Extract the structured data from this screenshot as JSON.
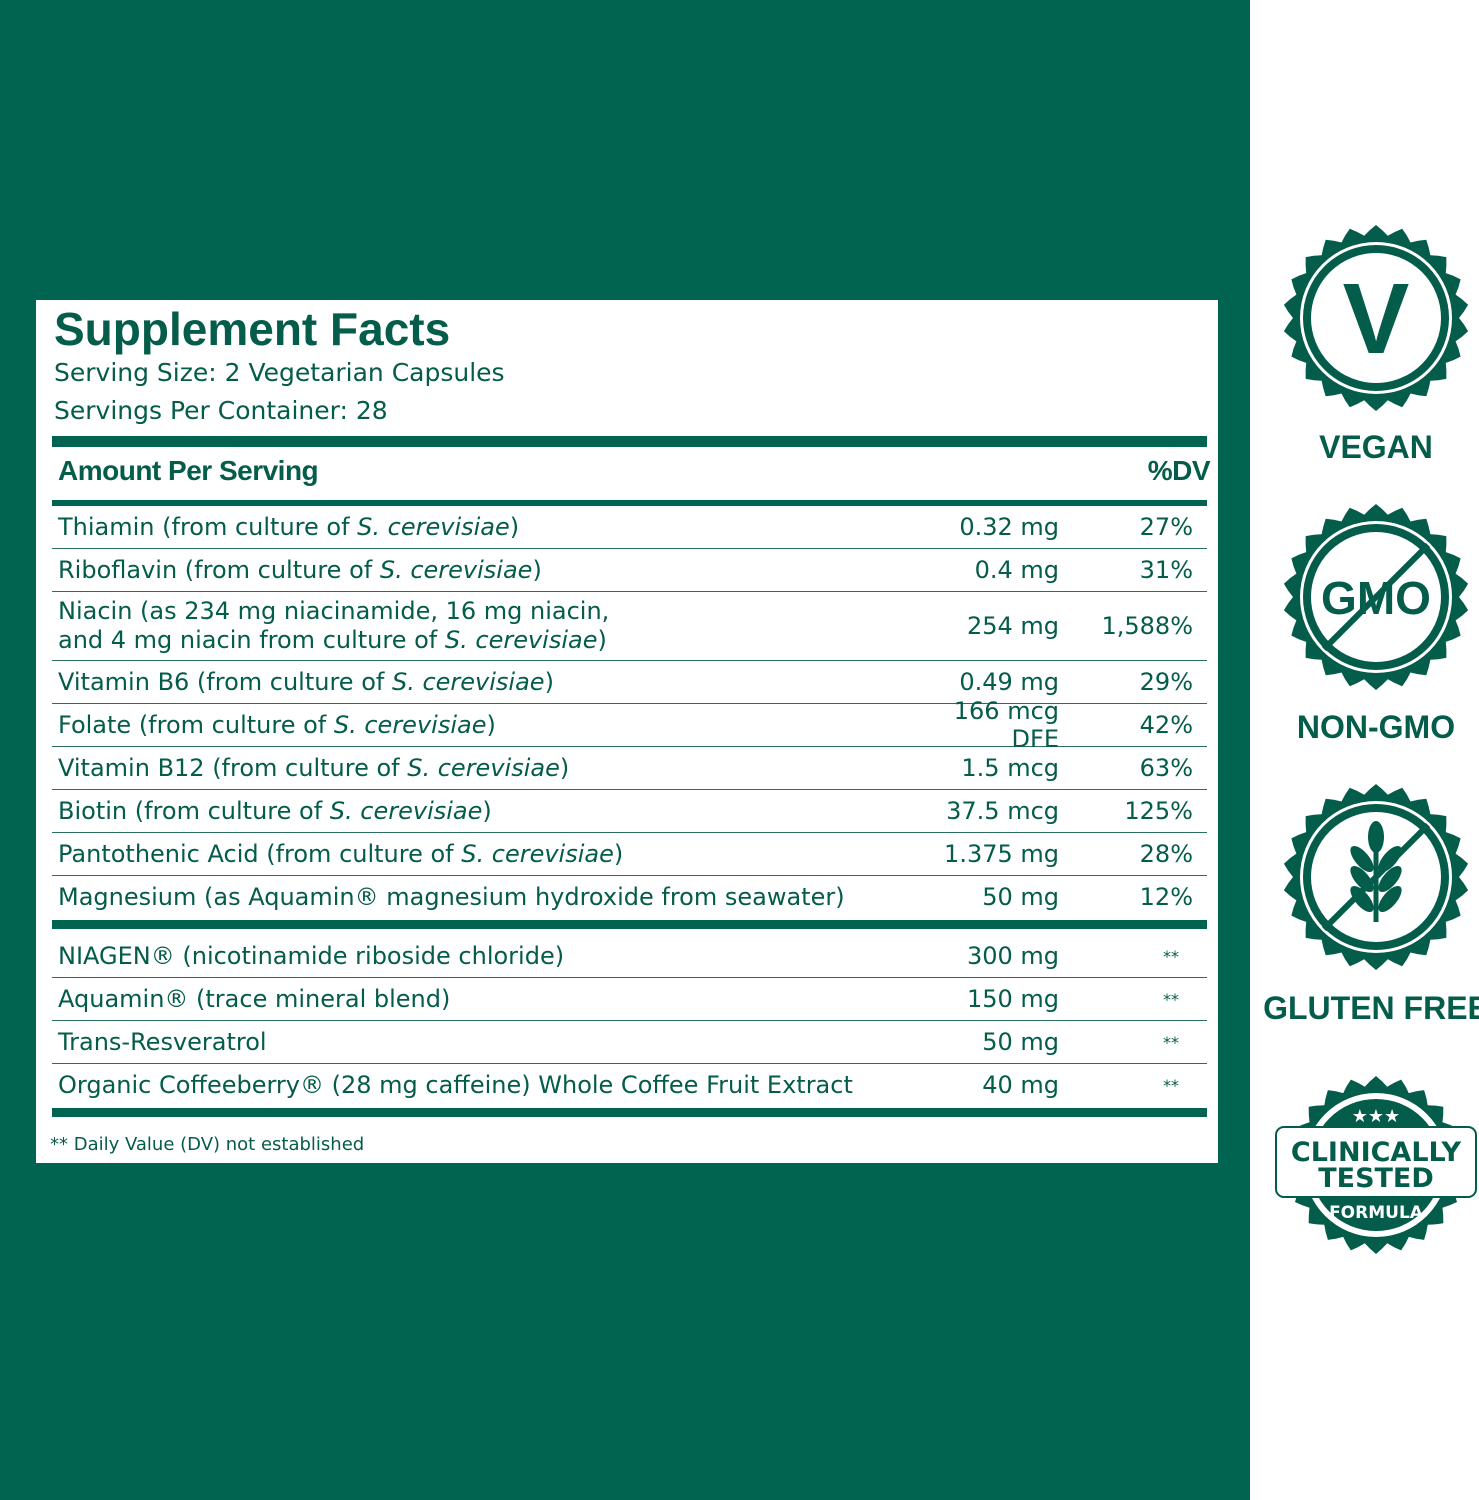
{
  "panel": {
    "title": "Supplement Facts",
    "serving_size": "Serving Size: 2 Vegetarian Capsules",
    "servings_per_container": "Servings Per Container: 28",
    "header": {
      "amount": "Amount Per Serving",
      "dv": "%DV"
    },
    "groups": [
      {
        "rows": [
          {
            "name": [
              [
                "Thiamin (from culture of ",
                "S. cerevisiae",
                ")"
              ]
            ],
            "amount": "0.32 mg",
            "dv": "27%"
          },
          {
            "name": [
              [
                "Riboflavin (from culture of ",
                "S. cerevisiae",
                ")"
              ]
            ],
            "amount": "0.4 mg",
            "dv": "31%"
          },
          {
            "name": [
              [
                "Niacin (as 234 mg niacinamide, 16 mg niacin,"
              ],
              [
                "and 4 mg niacin from culture of ",
                "S. cerevisiae",
                ")"
              ]
            ],
            "amount": "254 mg",
            "dv": "1,588%"
          },
          {
            "name": [
              [
                "Vitamin B6 (from culture of ",
                "S. cerevisiae",
                ")"
              ]
            ],
            "amount": "0.49 mg",
            "dv": "29%"
          },
          {
            "name": [
              [
                "Folate (from culture of ",
                "S. cerevisiae",
                ")"
              ]
            ],
            "amount": "166 mcg DFE",
            "dv": "42%"
          },
          {
            "name": [
              [
                "Vitamin B12 (from culture of ",
                "S. cerevisiae",
                ")"
              ]
            ],
            "amount": "1.5 mcg",
            "dv": "63%"
          },
          {
            "name": [
              [
                "Biotin (from culture of ",
                "S. cerevisiae",
                ")"
              ]
            ],
            "amount": "37.5 mcg",
            "dv": "125%"
          },
          {
            "name": [
              [
                "Pantothenic Acid (from culture of ",
                "S. cerevisiae",
                ")"
              ]
            ],
            "amount": "1.375 mg",
            "dv": "28%"
          },
          {
            "name": [
              [
                "Magnesium (as Aquamin® magnesium hydroxide from seawater)"
              ]
            ],
            "amount": "50 mg",
            "dv": "12%"
          }
        ]
      },
      {
        "rows": [
          {
            "name": [
              [
                "NIAGEN® (nicotinamide riboside chloride)"
              ]
            ],
            "amount": "300 mg",
            "dv": "**"
          },
          {
            "name": [
              [
                "Aquamin® (trace mineral blend)"
              ]
            ],
            "amount": "150 mg",
            "dv": "**"
          },
          {
            "name": [
              [
                "Trans-Resveratrol"
              ]
            ],
            "amount": "50 mg",
            "dv": "**"
          },
          {
            "name": [
              [
                "Organic Coffeeberry® (28 mg caffeine) Whole Coffee Fruit Extract"
              ]
            ],
            "amount": "40 mg",
            "dv": "**"
          }
        ]
      }
    ],
    "footnote": "** Daily Value (DV) not established"
  },
  "badges": [
    {
      "icon": "V",
      "label": "VEGAN"
    },
    {
      "icon": "GMO",
      "label": "NON-GMO"
    },
    {
      "label": "GLUTEN FREE"
    },
    {
      "stars": "★★★",
      "line1": "CLINICALLY",
      "line2": "TESTED",
      "line3": "FORMULA"
    }
  ]
}
